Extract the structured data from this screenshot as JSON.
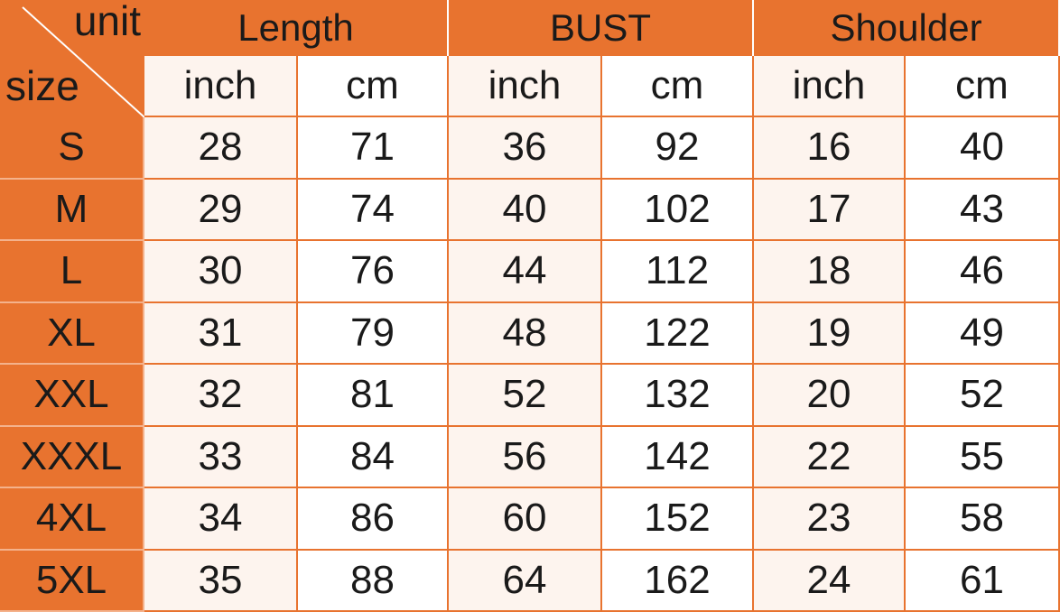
{
  "header": {
    "corner": {
      "unit": "unit",
      "size": "size"
    },
    "groups": [
      "Length",
      "BUST",
      "Shoulder"
    ],
    "units": [
      "inch",
      "cm",
      "inch",
      "cm",
      "inch",
      "cm"
    ]
  },
  "table": {
    "rows": [
      {
        "size": "S",
        "values": [
          28,
          71,
          36,
          92,
          16,
          40
        ]
      },
      {
        "size": "M",
        "values": [
          29,
          74,
          40,
          102,
          17,
          43
        ]
      },
      {
        "size": "L",
        "values": [
          30,
          76,
          44,
          112,
          18,
          46
        ]
      },
      {
        "size": "XL",
        "values": [
          31,
          79,
          48,
          122,
          19,
          49
        ]
      },
      {
        "size": "XXL",
        "values": [
          32,
          81,
          52,
          132,
          20,
          52
        ]
      },
      {
        "size": "XXXL",
        "values": [
          33,
          84,
          56,
          142,
          22,
          55
        ]
      },
      {
        "size": "4XL",
        "values": [
          34,
          86,
          60,
          152,
          23,
          58
        ]
      },
      {
        "size": "5XL",
        "values": [
          35,
          88,
          64,
          162,
          24,
          61
        ]
      }
    ]
  }
}
